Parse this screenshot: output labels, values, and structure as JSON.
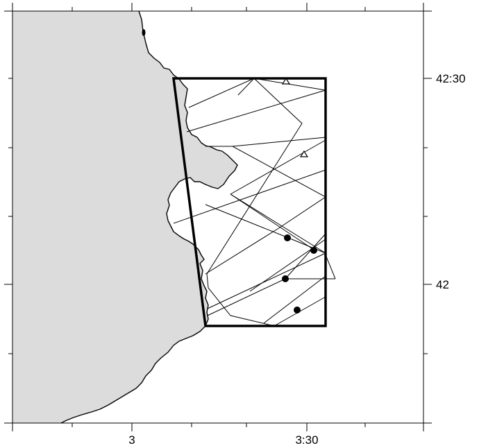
{
  "map": {
    "land_color": "#dcdcdc",
    "sea_color": "#ffffff",
    "coast_color": "#000000",
    "box_color": "#000000",
    "x_tick_labels": {
      "lon_3": "3",
      "lon_3_30": "3:30"
    },
    "y_tick_labels": {
      "lat_42_30": "42:30",
      "lat_42": "42"
    },
    "markers": {
      "filled_circle_count": 4,
      "open_triangle_count": 2
    }
  }
}
